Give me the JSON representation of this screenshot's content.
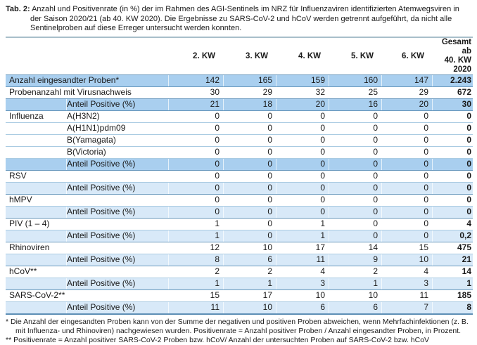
{
  "caption": {
    "label": "Tab. 2:",
    "text": "Anzahl und Positivenrate (in %) der im Rahmen des AGI-Sentinels im NRZ für Influenzaviren identifizierten Atemwegsviren in der Saison 2020/21 (ab 40. KW 2020). Die Ergebnisse zu SARS-CoV-2 und hCoV werden getrennt aufgeführt, da nicht alle Sentinelproben auf diese Erreger untersucht werden konnten."
  },
  "table": {
    "kw_headers": [
      "2. KW",
      "3. KW",
      "4. KW",
      "5. KW",
      "6. KW"
    ],
    "gesamt_header": {
      "line1": "Gesamt ab",
      "line2": "40. KW 2020"
    },
    "colors": {
      "highlight_medium": "#a9cfef",
      "highlight_light": "#d8e9f8",
      "rule_strong": "#6898bd",
      "rule_soft": "#aacbe2",
      "rule_top": "#a8bfca",
      "rule_bottom": "#5d8eb5"
    },
    "rows": [
      {
        "label": "Anzahl eingesandter Proben*",
        "sub": "",
        "values": [
          "142",
          "165",
          "159",
          "160",
          "147",
          "2.243"
        ],
        "bg": "medium",
        "border": "strong"
      },
      {
        "label": "Probenanzahl mit Virusnachweis",
        "sub": "",
        "values": [
          "30",
          "29",
          "32",
          "25",
          "29",
          "672"
        ],
        "bg": "none",
        "border": "strong"
      },
      {
        "label": "",
        "sub": "Anteil Positive (%)",
        "values": [
          "21",
          "18",
          "20",
          "16",
          "20",
          "30"
        ],
        "bg": "medium",
        "border": "strong"
      },
      {
        "label": "Influenza",
        "sub": "A(H3N2)",
        "values": [
          "0",
          "0",
          "0",
          "0",
          "0",
          "0"
        ],
        "bg": "none",
        "border": "strong"
      },
      {
        "label": "",
        "sub": "A(H1N1)pdm09",
        "values": [
          "0",
          "0",
          "0",
          "0",
          "0",
          "0"
        ],
        "bg": "none",
        "border": "soft"
      },
      {
        "label": "",
        "sub": "B(Yamagata)",
        "values": [
          "0",
          "0",
          "0",
          "0",
          "0",
          "0"
        ],
        "bg": "none",
        "border": "soft"
      },
      {
        "label": "",
        "sub": "B(Victoria)",
        "values": [
          "0",
          "0",
          "0",
          "0",
          "0",
          "0"
        ],
        "bg": "none",
        "border": "soft"
      },
      {
        "label": "",
        "sub": "Anteil Positive (%)",
        "values": [
          "0",
          "0",
          "0",
          "0",
          "0",
          "0"
        ],
        "bg": "medium",
        "border": "soft"
      },
      {
        "label": "RSV",
        "sub": "",
        "values": [
          "0",
          "0",
          "0",
          "0",
          "0",
          "0"
        ],
        "bg": "none",
        "border": "strong"
      },
      {
        "label": "",
        "sub": "Anteil Positive (%)",
        "values": [
          "0",
          "0",
          "0",
          "0",
          "0",
          "0"
        ],
        "bg": "light",
        "border": "soft"
      },
      {
        "label": "hMPV",
        "sub": "",
        "values": [
          "0",
          "0",
          "0",
          "0",
          "0",
          "0"
        ],
        "bg": "none",
        "border": "strong"
      },
      {
        "label": "",
        "sub": "Anteil Positive (%)",
        "values": [
          "0",
          "0",
          "0",
          "0",
          "0",
          "0"
        ],
        "bg": "light",
        "border": "soft"
      },
      {
        "label": "PIV (1 – 4)",
        "sub": "",
        "values": [
          "1",
          "0",
          "1",
          "0",
          "0",
          "4"
        ],
        "bg": "none",
        "border": "strong"
      },
      {
        "label": "",
        "sub": "Anteil Positive (%)",
        "values": [
          "1",
          "0",
          "1",
          "0",
          "0",
          "0,2"
        ],
        "bg": "light",
        "border": "soft"
      },
      {
        "label": "Rhinoviren",
        "sub": "",
        "values": [
          "12",
          "10",
          "17",
          "14",
          "15",
          "475"
        ],
        "bg": "none",
        "border": "strong"
      },
      {
        "label": "",
        "sub": "Anteil Positive (%)",
        "values": [
          "8",
          "6",
          "11",
          "9",
          "10",
          "21"
        ],
        "bg": "light",
        "border": "soft"
      },
      {
        "label": "hCoV**",
        "sub": "",
        "values": [
          "2",
          "2",
          "4",
          "2",
          "4",
          "14"
        ],
        "bg": "none",
        "border": "strong"
      },
      {
        "label": "",
        "sub": "Anteil Positive (%)",
        "values": [
          "1",
          "1",
          "3",
          "1",
          "3",
          "1"
        ],
        "bg": "light",
        "border": "soft"
      },
      {
        "label": "SARS-CoV-2**",
        "sub": "",
        "values": [
          "15",
          "17",
          "10",
          "10",
          "11",
          "185"
        ],
        "bg": "none",
        "border": "strong"
      },
      {
        "label": "",
        "sub": "Anteil Positive (%)",
        "values": [
          "11",
          "10",
          "6",
          "6",
          "7",
          "8"
        ],
        "bg": "light",
        "border": "soft"
      }
    ]
  },
  "footnotes": [
    "* Die Anzahl der eingesandten Proben kann von der Summe der negativen und positiven Proben abweichen, wenn Mehrfachinfektionen (z. B. mit Influenza- und Rhinoviren) nachgewiesen wurden. Positivenrate = Anzahl positiver Proben / Anzahl eingesandter Proben, in Prozent.",
    "** Positivenrate = Anzahl positiver SARS-CoV-2 Proben bzw. hCoV/ Anzahl der untersuchten Proben auf SARS-CoV-2 bzw. hCoV"
  ]
}
